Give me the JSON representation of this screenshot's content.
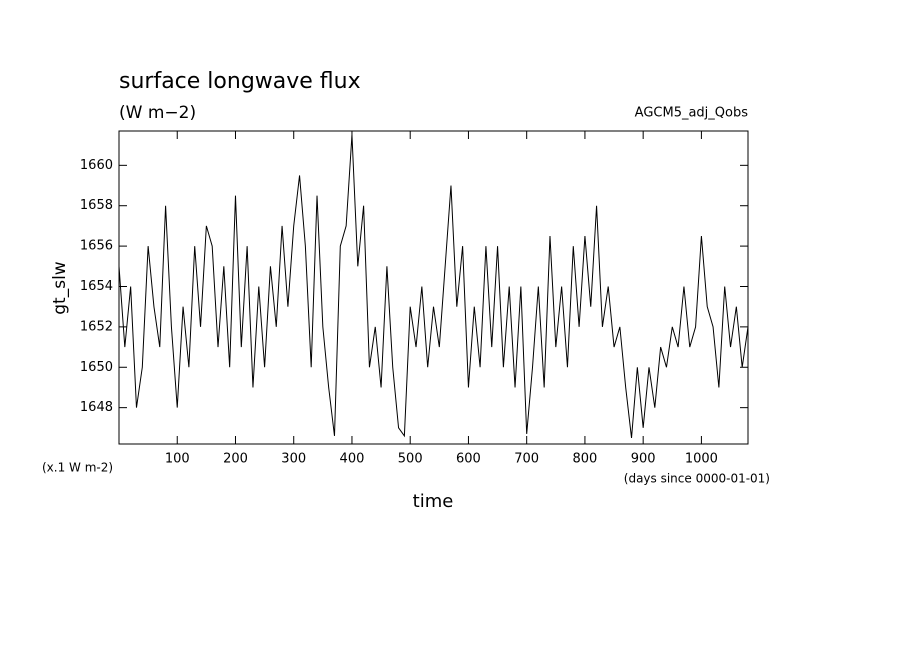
{
  "chart_data": {
    "type": "line",
    "title": "surface longwave flux",
    "subtitle": "(W m−2)",
    "annotation": "AGCM5_adj_Qobs",
    "y_label": "gt_slw",
    "x_label": "time",
    "y_unit_note": "(x.1 W m-2)",
    "x_unit_note": "(days since 0000-01-01)",
    "xlim": [
      0,
      1080
    ],
    "ylim": [
      1646.2,
      1661.7
    ],
    "xticks": [
      100,
      200,
      300,
      400,
      500,
      600,
      700,
      800,
      900,
      1000
    ],
    "yticks": [
      1648,
      1650,
      1652,
      1654,
      1656,
      1658,
      1660
    ],
    "x": [
      0,
      10,
      20,
      30,
      40,
      50,
      60,
      70,
      80,
      90,
      100,
      110,
      120,
      130,
      140,
      150,
      160,
      170,
      180,
      190,
      200,
      210,
      220,
      230,
      240,
      250,
      260,
      270,
      280,
      290,
      300,
      310,
      320,
      330,
      340,
      350,
      360,
      370,
      380,
      390,
      400,
      410,
      420,
      430,
      440,
      450,
      460,
      470,
      480,
      490,
      500,
      510,
      520,
      530,
      540,
      550,
      560,
      570,
      580,
      590,
      600,
      610,
      620,
      630,
      640,
      650,
      660,
      670,
      680,
      690,
      700,
      710,
      720,
      730,
      740,
      750,
      760,
      770,
      780,
      790,
      800,
      810,
      820,
      830,
      840,
      850,
      860,
      870,
      880,
      890,
      900,
      910,
      920,
      930,
      940,
      950,
      960,
      970,
      980,
      990,
      1000,
      1010,
      1020,
      1030,
      1040,
      1050,
      1060,
      1070,
      1080
    ],
    "series": [
      {
        "name": "gt_slw",
        "color": "#000000",
        "values": [
          1655,
          1651,
          1654,
          1648,
          1650,
          1656,
          1653,
          1651,
          1658,
          1652,
          1648,
          1653,
          1650,
          1656,
          1652,
          1657,
          1656,
          1651,
          1655,
          1650,
          1658.5,
          1651,
          1656,
          1649,
          1654,
          1650,
          1655,
          1652,
          1657,
          1653,
          1657,
          1659.5,
          1656,
          1650,
          1658.5,
          1652,
          1649,
          1646.6,
          1656,
          1657,
          1661.5,
          1655,
          1658,
          1650,
          1652,
          1649,
          1655,
          1650,
          1647,
          1646.6,
          1653,
          1651,
          1654,
          1650,
          1653,
          1651,
          1655,
          1659,
          1653,
          1656,
          1649,
          1653,
          1650,
          1656,
          1651,
          1656,
          1650,
          1654,
          1649,
          1654,
          1646.7,
          1650,
          1654,
          1649,
          1656.5,
          1651,
          1654,
          1650,
          1656,
          1652,
          1656.5,
          1653,
          1658,
          1652,
          1654,
          1651,
          1652,
          1649,
          1646.5,
          1650,
          1647,
          1650,
          1648,
          1651,
          1650,
          1652,
          1651,
          1654,
          1651,
          1652,
          1656.5,
          1653,
          1652,
          1649,
          1654,
          1651,
          1653,
          1650,
          1652
        ]
      }
    ]
  }
}
